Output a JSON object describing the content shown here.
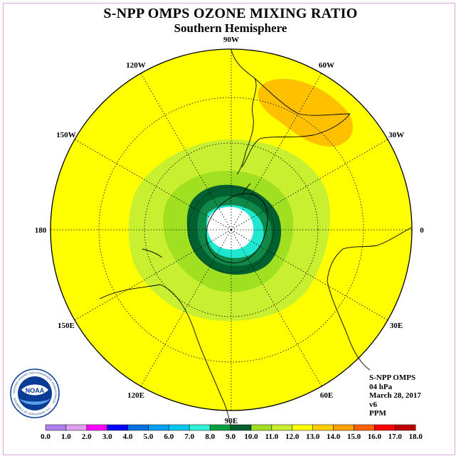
{
  "header": {
    "title": "S-NPP OMPS OZONE MIXING RATIO",
    "subtitle": "Southern Hemisphere"
  },
  "map": {
    "projection": "south-polar-stereographic",
    "longitude_labels": [
      {
        "text": "0",
        "lon": 0
      },
      {
        "text": "30E",
        "lon": 30
      },
      {
        "text": "60E",
        "lon": 60
      },
      {
        "text": "90E",
        "lon": 90
      },
      {
        "text": "120E",
        "lon": 120
      },
      {
        "text": "150E",
        "lon": 150
      },
      {
        "text": "180",
        "lon": 180
      },
      {
        "text": "150W",
        "lon": -150
      },
      {
        "text": "120W",
        "lon": -120
      },
      {
        "text": "90W",
        "lon": -90
      },
      {
        "text": "60W",
        "lon": -60
      },
      {
        "text": "30W",
        "lon": -30
      }
    ],
    "field_colors": {
      "background": "#ffff00",
      "orange_patch": "#ffc000",
      "light_green": "#c8f030",
      "mid_green": "#a0e020",
      "dark_green": "#107830",
      "darkest_green": "#006030",
      "cyan": "#20e8d0",
      "polar_night": "#ffffff"
    }
  },
  "info": {
    "instrument": "S-NPP OMPS",
    "level": "04 hPa",
    "date": "March 28, 2017",
    "version": "v6",
    "units": "PPM"
  },
  "logo": {
    "text": "NOAA",
    "ring_text": "NATIONAL OCEANIC AND ATMOSPHERIC ADMINISTRATION",
    "bottom_text": "U.S. DEPARTMENT OF COMMERCE"
  },
  "colorbar": {
    "ticks": [
      "0.0",
      "1.0",
      "2.0",
      "3.0",
      "4.0",
      "5.0",
      "6.0",
      "7.0",
      "8.0",
      "9.0",
      "10.0",
      "11.0",
      "12.0",
      "13.0",
      "14.0",
      "15.0",
      "16.0",
      "17.0",
      "18.0"
    ],
    "colors": [
      "#b080f0",
      "#e0a0f0",
      "#ff00ff",
      "#0000ff",
      "#0070e0",
      "#00a0f0",
      "#00c8f0",
      "#30f0d8",
      "#00a040",
      "#006030",
      "#a0e020",
      "#c8f030",
      "#ffff00",
      "#ffd000",
      "#ffa000",
      "#ff6000",
      "#ff0000",
      "#c00000"
    ]
  }
}
